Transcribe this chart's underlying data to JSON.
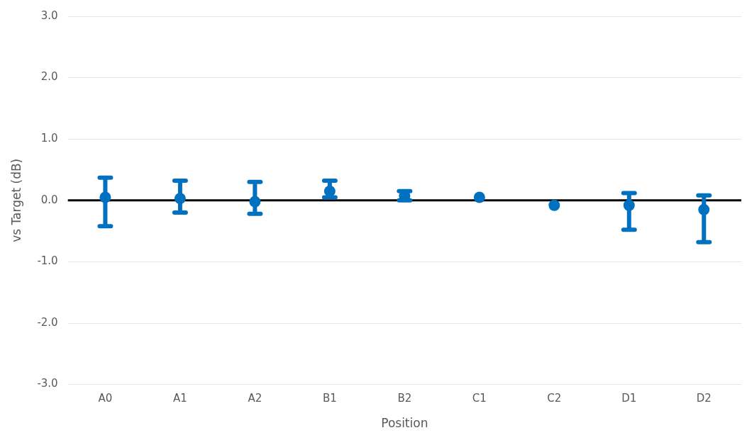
{
  "chart_data": {
    "type": "scatter",
    "xlabel": "Position",
    "ylabel": "vs Target (dB)",
    "categories": [
      "A0",
      "A1",
      "A2",
      "B1",
      "B2",
      "C1",
      "C2",
      "D1",
      "D2"
    ],
    "series": [
      {
        "color": "#0070c0",
        "values": [
          0.05,
          0.03,
          -0.02,
          0.15,
          0.07,
          0.05,
          -0.08,
          -0.08,
          -0.15
        ],
        "errors": [
          [
            -0.42,
            0.37
          ],
          [
            -0.2,
            0.32
          ],
          [
            -0.22,
            0.3
          ],
          [
            0.05,
            0.32
          ],
          [
            0.0,
            0.15
          ],
          null,
          null,
          [
            -0.48,
            0.12
          ],
          [
            -0.68,
            0.08
          ]
        ]
      }
    ],
    "ylim": [
      -3,
      3
    ],
    "yticks": [
      {
        "value": -3,
        "label": "-3.0"
      },
      {
        "value": -2,
        "label": "-2.0"
      },
      {
        "value": -1,
        "label": "-1.0"
      },
      {
        "value": 0,
        "label": "0.0"
      },
      {
        "value": 1,
        "label": "1.0"
      },
      {
        "value": 2,
        "label": "2.0"
      },
      {
        "value": 3,
        "label": "3.0"
      }
    ],
    "ref_lines": [
      {
        "axis": "y",
        "value": 0,
        "color": "#000000"
      }
    ],
    "grid": "y",
    "marker": "circle",
    "legend": false
  }
}
